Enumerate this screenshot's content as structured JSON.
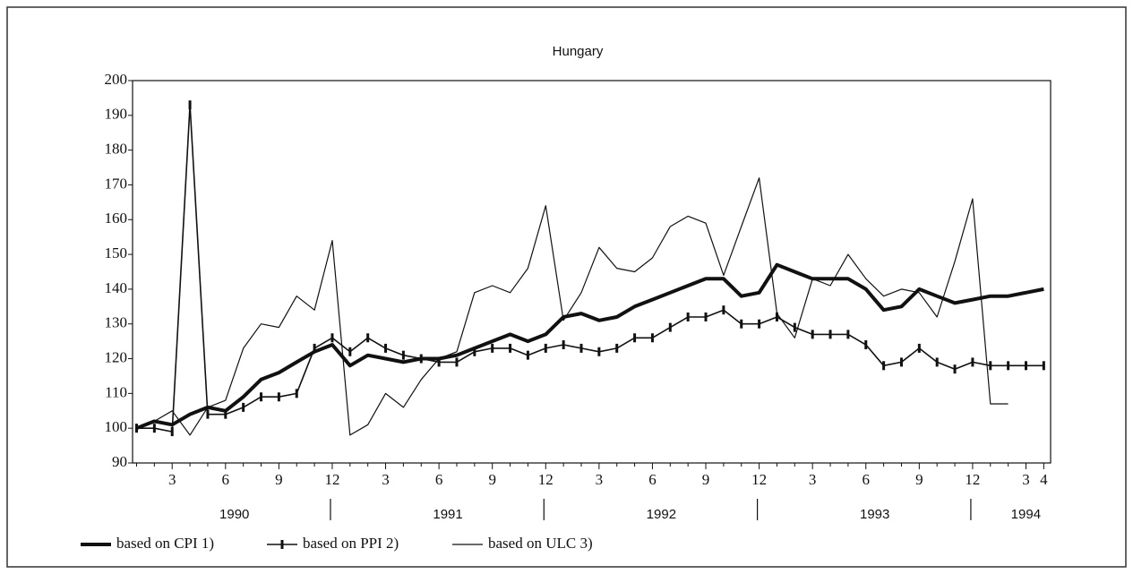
{
  "chart_data": {
    "type": "line",
    "title": "Hungary",
    "categories": [
      null,
      null,
      "3",
      null,
      null,
      "6",
      null,
      null,
      "9",
      null,
      null,
      "12",
      null,
      null,
      "3",
      null,
      null,
      "6",
      null,
      null,
      "9",
      null,
      null,
      "12",
      null,
      null,
      "3",
      null,
      null,
      "6",
      null,
      null,
      "9",
      null,
      null,
      "12",
      null,
      null,
      "3",
      null,
      null,
      "6",
      null,
      null,
      "9",
      null,
      null,
      "12",
      null,
      null,
      "3",
      "4"
    ],
    "year_labels": [
      "1990",
      "1991",
      "1992",
      "1993",
      "1994"
    ],
    "ylim": [
      90,
      200
    ],
    "yticks": [
      90,
      100,
      110,
      120,
      130,
      140,
      150,
      160,
      170,
      180,
      190,
      200
    ],
    "series": [
      {
        "name": "based on CPI 1)",
        "color": "#111",
        "width": 4,
        "markers": false,
        "values": [
          100,
          102,
          101,
          104,
          106,
          105,
          109,
          114,
          116,
          119,
          122,
          124,
          118,
          121,
          120,
          119,
          120,
          120,
          121,
          123,
          125,
          127,
          125,
          127,
          132,
          133,
          131,
          132,
          135,
          137,
          139,
          141,
          143,
          143,
          138,
          139,
          147,
          145,
          143,
          143,
          143,
          140,
          134,
          135,
          140,
          138,
          136,
          137,
          138,
          138,
          139,
          140
        ]
      },
      {
        "name": "based on PPI 2)",
        "color": "#111",
        "width": 1.6,
        "markers": true,
        "values": [
          100,
          100,
          99,
          193,
          104,
          104,
          106,
          109,
          109,
          110,
          123,
          126,
          122,
          126,
          123,
          121,
          120,
          119,
          119,
          122,
          123,
          123,
          121,
          123,
          124,
          123,
          122,
          123,
          126,
          126,
          129,
          132,
          132,
          134,
          130,
          130,
          132,
          129,
          127,
          127,
          127,
          124,
          118,
          119,
          123,
          119,
          117,
          119,
          118,
          118,
          118,
          118
        ]
      },
      {
        "name": "based on ULC 3)",
        "color": "#111",
        "width": 1.2,
        "markers": false,
        "values": [
          100,
          102,
          105,
          98,
          106,
          108,
          123,
          130,
          129,
          138,
          134,
          154,
          98,
          101,
          110,
          106,
          114,
          120,
          122,
          139,
          141,
          139,
          146,
          164,
          131,
          139,
          152,
          146,
          145,
          149,
          158,
          161,
          159,
          144,
          158,
          172,
          133,
          126,
          143,
          141,
          150,
          143,
          138,
          140,
          139,
          132,
          148,
          166,
          107,
          107,
          null,
          null
        ]
      }
    ]
  }
}
